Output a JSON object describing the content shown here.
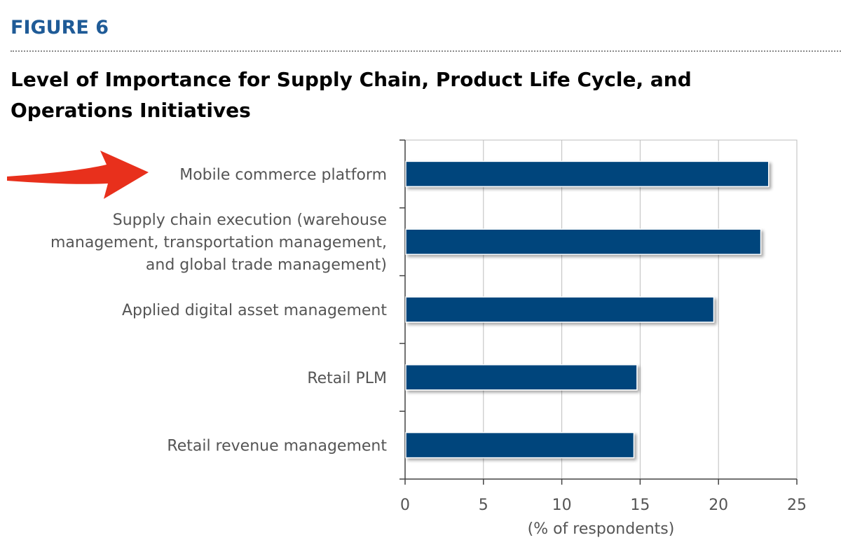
{
  "figure_label": "FIGURE 6",
  "chart_data": {
    "type": "bar",
    "orientation": "horizontal",
    "title": "Level of Importance for Supply Chain, Product Life Cycle, and Operations Initiatives",
    "categories": [
      "Mobile commerce platform",
      "Supply chain execution (warehouse management, transportation management, and global trade management)",
      "Applied digital asset management",
      "Retail PLM",
      "Retail revenue management"
    ],
    "category_lines": [
      [
        "Mobile commerce platform"
      ],
      [
        "Supply chain execution (warehouse",
        "management, transportation management,",
        "and global trade management)"
      ],
      [
        "Applied digital asset management"
      ],
      [
        "Retail PLM"
      ],
      [
        "Retail revenue management"
      ]
    ],
    "values": [
      23.2,
      22.7,
      19.7,
      14.8,
      14.6
    ],
    "xlabel": "(% of respondents)",
    "ylabel": "",
    "xlim": [
      0,
      25
    ],
    "xticks": [
      "0",
      "5",
      "10",
      "15",
      "20",
      "25"
    ],
    "grid": true,
    "highlighted_category": "Mobile commerce platform",
    "colors": {
      "bar": "#00447c",
      "grid": "#bdbdbd",
      "arrow": "#e8301c",
      "axis": "#444444"
    }
  }
}
